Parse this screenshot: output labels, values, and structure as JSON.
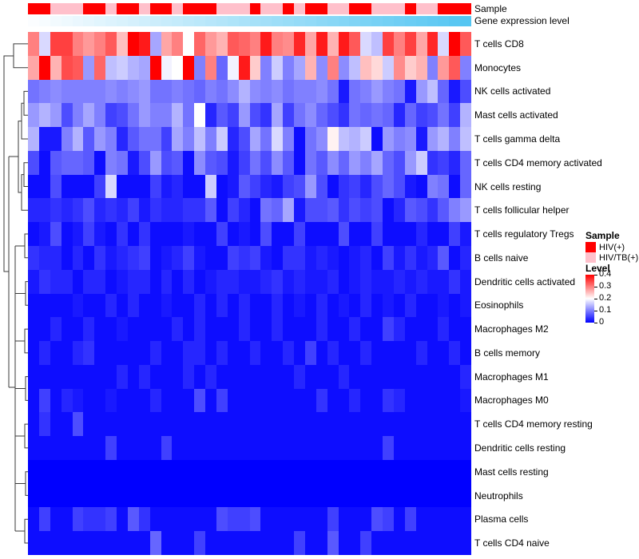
{
  "annotations": {
    "sample_bar_label": "Sample",
    "gene_bar_label": "Gene expression level",
    "sample_groups": [
      "HIV(+)",
      "HIV(+)",
      "HIV/TB(+)",
      "HIV/TB(+)",
      "HIV/TB(+)",
      "HIV(+)",
      "HIV(+)",
      "HIV/TB(+)",
      "HIV(+)",
      "HIV(+)",
      "HIV/TB(+)",
      "HIV(+)",
      "HIV(+)",
      "HIV/TB(+)",
      "HIV(+)",
      "HIV(+)",
      "HIV(+)",
      "HIV/TB(+)",
      "HIV/TB(+)",
      "HIV/TB(+)",
      "HIV(+)",
      "HIV/TB(+)",
      "HIV/TB(+)",
      "HIV(+)",
      "HIV/TB(+)",
      "HIV(+)",
      "HIV(+)",
      "HIV/TB(+)",
      "HIV/TB(+)",
      "HIV(+)",
      "HIV(+)",
      "HIV/TB(+)",
      "HIV/TB(+)",
      "HIV/TB(+)",
      "HIV(+)",
      "HIV/TB(+)",
      "HIV/TB(+)",
      "HIV(+)",
      "HIV(+)",
      "HIV(+)"
    ],
    "gene_gradient": {
      "start_color": "#FBFDFF",
      "end_color": "#55C6F2"
    }
  },
  "legends": {
    "sample": {
      "title": "Sample",
      "items": [
        {
          "label": "HIV(+)",
          "color": "#FF0000"
        },
        {
          "label": "HIV/TB(+)",
          "color": "#FFC0CB"
        }
      ]
    },
    "level": {
      "title": "Level",
      "ticks": [
        "0.4",
        "0.3",
        "0.2",
        "0.1",
        "0"
      ]
    }
  },
  "chart_data": {
    "type": "heatmap",
    "title": "",
    "n_cols": 40,
    "col_labels_shown": false,
    "value_range": [
      0,
      0.4
    ],
    "colormap": {
      "low": "#0000FF",
      "mid": "#FFFFFF",
      "high": "#FF0000",
      "domain": [
        0,
        0.2,
        0.4
      ]
    },
    "rows": [
      "T cells CD8",
      "Monocytes",
      "NK cells activated",
      "Mast cells activated",
      "T cells gamma delta",
      "T cells CD4 memory activated",
      "NK cells resting",
      "T cells follicular helper",
      "T cells regulatory  Tregs",
      "B cells naive",
      "Dendritic cells activated",
      "Eosinophils",
      "Macrophages M2",
      "B cells memory",
      "Macrophages M1",
      "Macrophages M0",
      "T cells CD4 memory resting",
      "Dendritic cells resting",
      "Mast cells resting",
      "Neutrophils",
      "Plasma cells",
      "T cells CD4 naive"
    ],
    "values": [
      [
        0.3,
        0.17,
        0.35,
        0.35,
        0.3,
        0.28,
        0.3,
        0.33,
        0.25,
        0.4,
        0.38,
        0.13,
        0.27,
        0.3,
        0.2,
        0.32,
        0.28,
        0.26,
        0.33,
        0.32,
        0.3,
        0.38,
        0.3,
        0.29,
        0.37,
        0.27,
        0.38,
        0.26,
        0.38,
        0.33,
        0.17,
        0.15,
        0.35,
        0.3,
        0.35,
        0.27,
        0.37,
        0.17,
        0.4,
        0.33
      ],
      [
        0.27,
        0.4,
        0.26,
        0.34,
        0.33,
        0.12,
        0.32,
        0.15,
        0.16,
        0.14,
        0.13,
        0.4,
        0.19,
        0.2,
        0.4,
        0.1,
        0.3,
        0.08,
        0.19,
        0.38,
        0.24,
        0.1,
        0.16,
        0.1,
        0.13,
        0.26,
        0.11,
        0.3,
        0.11,
        0.15,
        0.25,
        0.23,
        0.16,
        0.29,
        0.24,
        0.26,
        0.1,
        0.28,
        0.33,
        0.1
      ],
      [
        0.09,
        0.1,
        0.11,
        0.1,
        0.1,
        0.1,
        0.1,
        0.11,
        0.1,
        0.11,
        0.12,
        0.09,
        0.09,
        0.1,
        0.09,
        0.08,
        0.1,
        0.09,
        0.11,
        0.14,
        0.11,
        0.1,
        0.11,
        0.09,
        0.1,
        0.1,
        0.11,
        0.09,
        0.02,
        0.09,
        0.1,
        0.12,
        0.1,
        0.09,
        0.02,
        0.12,
        0.15,
        0.08,
        0.02,
        0.06
      ],
      [
        0.12,
        0.14,
        0.12,
        0.06,
        0.1,
        0.13,
        0.1,
        0.05,
        0.06,
        0.09,
        0.12,
        0.1,
        0.1,
        0.14,
        0.09,
        0.2,
        0.03,
        0.07,
        0.05,
        0.12,
        0.06,
        0.04,
        0.13,
        0.05,
        0.09,
        0.11,
        0.08,
        0.06,
        0.04,
        0.09,
        0.08,
        0.09,
        0.08,
        0.03,
        0.08,
        0.05,
        0.06,
        0.09,
        0.05,
        0.14
      ],
      [
        0.14,
        0.02,
        0.02,
        0.1,
        0.14,
        0.07,
        0.12,
        0.1,
        0.03,
        0.07,
        0.09,
        0.09,
        0.05,
        0.13,
        0.1,
        0.15,
        0.1,
        0.16,
        0.03,
        0.06,
        0.13,
        0.09,
        0.17,
        0.1,
        0.01,
        0.09,
        0.11,
        0.21,
        0.15,
        0.14,
        0.16,
        0.01,
        0.12,
        0.1,
        0.11,
        0.02,
        0.12,
        0.14,
        0.1,
        0.15
      ],
      [
        0.06,
        0.01,
        0.07,
        0.08,
        0.08,
        0.07,
        0.01,
        0.1,
        0.09,
        0.02,
        0.06,
        0.12,
        0.06,
        0.07,
        0.01,
        0.11,
        0.07,
        0.06,
        0.02,
        0.05,
        0.09,
        0.06,
        0.11,
        0.07,
        0.01,
        0.09,
        0.07,
        0.11,
        0.08,
        0.12,
        0.1,
        0.13,
        0.08,
        0.06,
        0.12,
        0.16,
        0.04,
        0.05,
        0.03,
        0.08
      ],
      [
        0.01,
        0.01,
        0.06,
        0.01,
        0.01,
        0.01,
        0.05,
        0.17,
        0.01,
        0.01,
        0.01,
        0.05,
        0.02,
        0.03,
        0.01,
        0.01,
        0.16,
        0.01,
        0.02,
        0.07,
        0.05,
        0.03,
        0.02,
        0.05,
        0.06,
        0.12,
        0.06,
        0.01,
        0.04,
        0.05,
        0.03,
        0.06,
        0.08,
        0.06,
        0.02,
        0.01,
        0.1,
        0.09,
        0.01,
        0.08
      ],
      [
        0.03,
        0.03,
        0.04,
        0.03,
        0.04,
        0.06,
        0.03,
        0.04,
        0.03,
        0.05,
        0.02,
        0.04,
        0.03,
        0.03,
        0.04,
        0.04,
        0.07,
        0.01,
        0.05,
        0.03,
        0.01,
        0.09,
        0.08,
        0.13,
        0.02,
        0.06,
        0.06,
        0.07,
        0.04,
        0.06,
        0.05,
        0.06,
        0.01,
        0.03,
        0.07,
        0.06,
        0.04,
        0.07,
        0.1,
        0.12
      ],
      [
        0.01,
        0.02,
        0.06,
        0.01,
        0.02,
        0.05,
        0.02,
        0.01,
        0.04,
        0.01,
        0.04,
        0.01,
        0.01,
        0.01,
        0.02,
        0.01,
        0.01,
        0.05,
        0.01,
        0.02,
        0.01,
        0.06,
        0.01,
        0.01,
        0.05,
        0.01,
        0.01,
        0.01,
        0.06,
        0.01,
        0.01,
        0.05,
        0.01,
        0.01,
        0.01,
        0.03,
        0.01,
        0.01,
        0.05,
        0.02
      ],
      [
        0.04,
        0.03,
        0.03,
        0.01,
        0.03,
        0.01,
        0.04,
        0.02,
        0.03,
        0.04,
        0.05,
        0.01,
        0.02,
        0.03,
        0.05,
        0.02,
        0.01,
        0.01,
        0.05,
        0.04,
        0.05,
        0.02,
        0.01,
        0.04,
        0.04,
        0.02,
        0.03,
        0.02,
        0.01,
        0.02,
        0.03,
        0.01,
        0.05,
        0.02,
        0.04,
        0.02,
        0.03,
        0.07,
        0.01,
        0.03
      ],
      [
        0.02,
        0.04,
        0.03,
        0.03,
        0.01,
        0.03,
        0.03,
        0.01,
        0.02,
        0.03,
        0.03,
        0.01,
        0.03,
        0.01,
        0.03,
        0.01,
        0.02,
        0.03,
        0.03,
        0.02,
        0.02,
        0.03,
        0.04,
        0.02,
        0.03,
        0.02,
        0.02,
        0.03,
        0.01,
        0.02,
        0.03,
        0.02,
        0.02,
        0.03,
        0.02,
        0.03,
        0.02,
        0.02,
        0.04,
        0.02
      ],
      [
        0.01,
        0.01,
        0.01,
        0.01,
        0.02,
        0.01,
        0.01,
        0.03,
        0.01,
        0.03,
        0.01,
        0.01,
        0.02,
        0.01,
        0.01,
        0.03,
        0.01,
        0.03,
        0.01,
        0.03,
        0.01,
        0.01,
        0.03,
        0.01,
        0.02,
        0.01,
        0.03,
        0.01,
        0.02,
        0.01,
        0.03,
        0.01,
        0.02,
        0.01,
        0.03,
        0.01,
        0.01,
        0.02,
        0.01,
        0.02
      ],
      [
        0.01,
        0.01,
        0.03,
        0.01,
        0.01,
        0.03,
        0.01,
        0.01,
        0.02,
        0.01,
        0.01,
        0.01,
        0.01,
        0.03,
        0.01,
        0.03,
        0.01,
        0.01,
        0.01,
        0.03,
        0.01,
        0.01,
        0.03,
        0.01,
        0.01,
        0.01,
        0.03,
        0.01,
        0.01,
        0.03,
        0.01,
        0.01,
        0.05,
        0.03,
        0.01,
        0.01,
        0.01,
        0.03,
        0.01,
        0.01
      ],
      [
        0.01,
        0.03,
        0.01,
        0.01,
        0.03,
        0.04,
        0.01,
        0.01,
        0.01,
        0.01,
        0.01,
        0.03,
        0.01,
        0.01,
        0.03,
        0.03,
        0.01,
        0.03,
        0.01,
        0.01,
        0.03,
        0.01,
        0.01,
        0.03,
        0.01,
        0.05,
        0.01,
        0.03,
        0.01,
        0.01,
        0.03,
        0.01,
        0.01,
        0.01,
        0.01,
        0.03,
        0.01,
        0.01,
        0.03,
        0.01
      ],
      [
        0.01,
        0.01,
        0.01,
        0.01,
        0.01,
        0.01,
        0.01,
        0.01,
        0.03,
        0.01,
        0.03,
        0.01,
        0.01,
        0.01,
        0.03,
        0.01,
        0.03,
        0.01,
        0.01,
        0.01,
        0.01,
        0.01,
        0.01,
        0.01,
        0.03,
        0.01,
        0.01,
        0.01,
        0.03,
        0.01,
        0.01,
        0.01,
        0.01,
        0.01,
        0.01,
        0.01,
        0.01,
        0.01,
        0.01,
        0.03
      ],
      [
        0.01,
        0.05,
        0.01,
        0.03,
        0.02,
        0.01,
        0.01,
        0.02,
        0.01,
        0.01,
        0.01,
        0.03,
        0.01,
        0.01,
        0.01,
        0.06,
        0.01,
        0.05,
        0.01,
        0.01,
        0.01,
        0.01,
        0.01,
        0.01,
        0.01,
        0.01,
        0.04,
        0.01,
        0.01,
        0.03,
        0.01,
        0.01,
        0.04,
        0.03,
        0.01,
        0.01,
        0.01,
        0.01,
        0.01,
        0.02
      ],
      [
        0.01,
        0.04,
        0.01,
        0.01,
        0.06,
        0.01,
        0.01,
        0.01,
        0.01,
        0.01,
        0.01,
        0.01,
        0.01,
        0.01,
        0.01,
        0.01,
        0.01,
        0.01,
        0.01,
        0.01,
        0.01,
        0.01,
        0.01,
        0.01,
        0.01,
        0.01,
        0.01,
        0.01,
        0.01,
        0.01,
        0.01,
        0.01,
        0.01,
        0.01,
        0.01,
        0.01,
        0.01,
        0.01,
        0.01,
        0.01
      ],
      [
        0.01,
        0.01,
        0.01,
        0.01,
        0.01,
        0.01,
        0.01,
        0.05,
        0.01,
        0.01,
        0.01,
        0.01,
        0.05,
        0.01,
        0.01,
        0.01,
        0.01,
        0.01,
        0.01,
        0.01,
        0.01,
        0.01,
        0.01,
        0.01,
        0.01,
        0.01,
        0.01,
        0.01,
        0.01,
        0.01,
        0.01,
        0.01,
        0.05,
        0.01,
        0.01,
        0.01,
        0.01,
        0.01,
        0.01,
        0.01
      ],
      [
        0,
        0,
        0,
        0,
        0,
        0,
        0,
        0,
        0,
        0,
        0,
        0,
        0,
        0,
        0,
        0,
        0,
        0,
        0,
        0,
        0,
        0,
        0,
        0,
        0,
        0,
        0,
        0,
        0,
        0,
        0,
        0,
        0,
        0,
        0,
        0,
        0,
        0,
        0,
        0
      ],
      [
        0,
        0,
        0,
        0,
        0,
        0,
        0,
        0,
        0,
        0,
        0,
        0,
        0,
        0,
        0,
        0,
        0,
        0,
        0,
        0,
        0,
        0,
        0,
        0,
        0,
        0,
        0,
        0,
        0,
        0,
        0,
        0,
        0,
        0,
        0,
        0,
        0,
        0,
        0,
        0
      ],
      [
        0.01,
        0.05,
        0.01,
        0.01,
        0.05,
        0.04,
        0.04,
        0.05,
        0.01,
        0.07,
        0.04,
        0.01,
        0.01,
        0.01,
        0.01,
        0.01,
        0.01,
        0.06,
        0.05,
        0.05,
        0.06,
        0.01,
        0.01,
        0.01,
        0.01,
        0.01,
        0.01,
        0.05,
        0.01,
        0.01,
        0.01,
        0.06,
        0.05,
        0.01,
        0.05,
        0.01,
        0.01,
        0.01,
        0.01,
        0.01
      ],
      [
        0.01,
        0.01,
        0.01,
        0.01,
        0.01,
        0.01,
        0.01,
        0.01,
        0.01,
        0.01,
        0.01,
        0.08,
        0.01,
        0.01,
        0.01,
        0.05,
        0.01,
        0.01,
        0.01,
        0.01,
        0.01,
        0.01,
        0.01,
        0.01,
        0.05,
        0.01,
        0.01,
        0.07,
        0.01,
        0.01,
        0.05,
        0.01,
        0.01,
        0.01,
        0.01,
        0.01,
        0.01,
        0.01,
        0.01,
        0.01
      ]
    ]
  }
}
